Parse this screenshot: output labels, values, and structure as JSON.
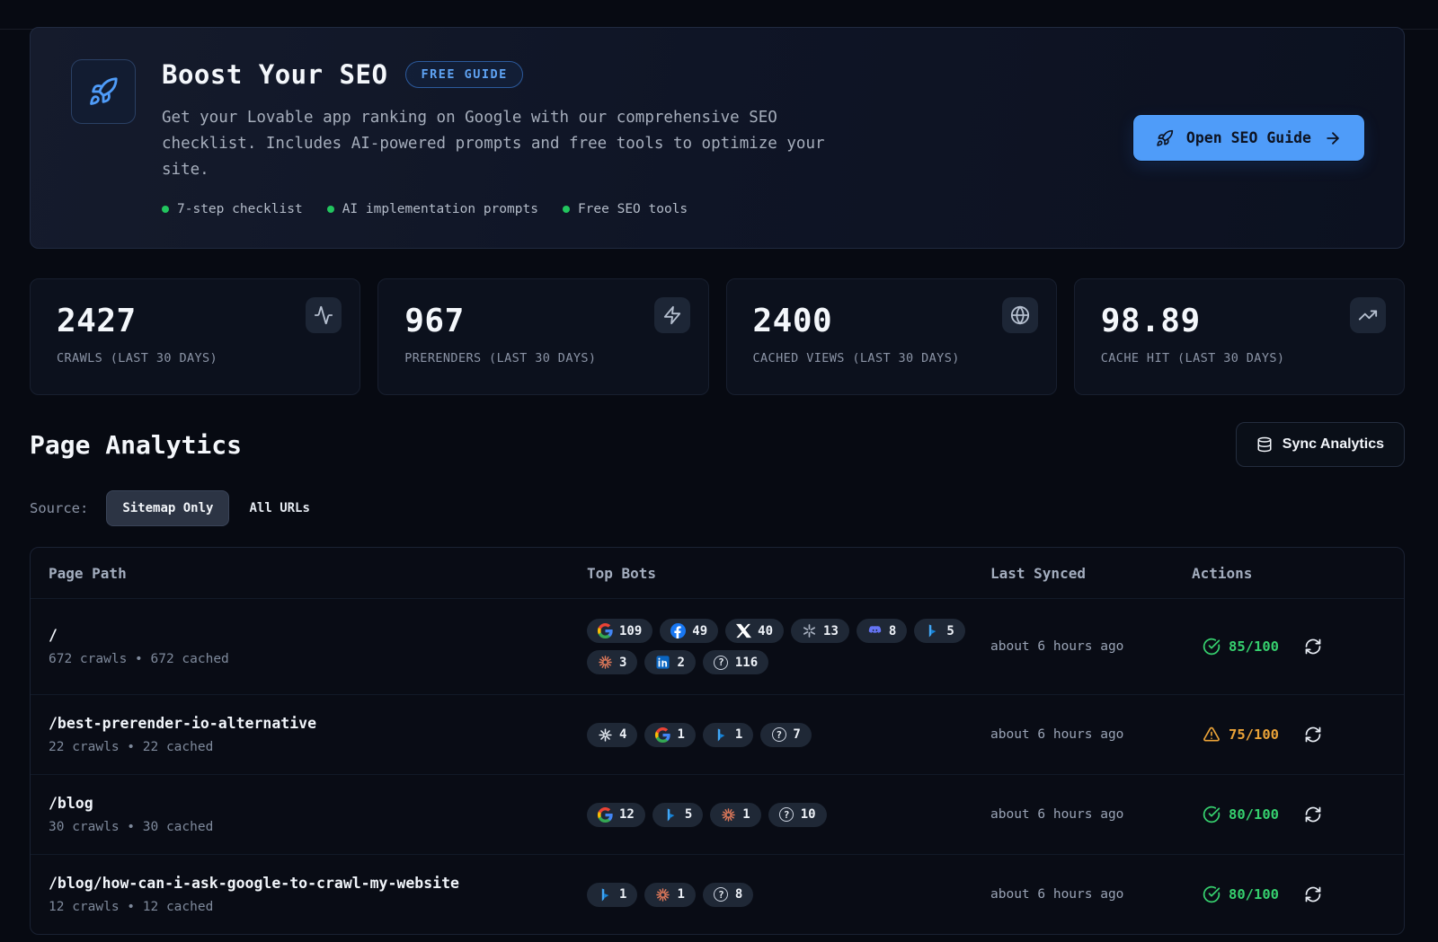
{
  "banner": {
    "title": "Boost Your SEO",
    "badge": "FREE GUIDE",
    "description": "Get your Lovable app ranking on Google with our comprehensive SEO checklist. Includes AI-powered prompts and free tools to optimize your site.",
    "features": [
      "7-step checklist",
      "AI implementation prompts",
      "Free SEO tools"
    ],
    "cta_label": "Open SEO Guide"
  },
  "stats": [
    {
      "value": "2427",
      "label": "CRAWLS (LAST 30 DAYS)",
      "icon": "activity"
    },
    {
      "value": "967",
      "label": "PRERENDERS (LAST 30 DAYS)",
      "icon": "zap"
    },
    {
      "value": "2400",
      "label": "CACHED VIEWS (LAST 30 DAYS)",
      "icon": "globe"
    },
    {
      "value": "98.89",
      "label": "CACHE HIT (LAST 30 DAYS)",
      "icon": "trend"
    }
  ],
  "analytics": {
    "title": "Page Analytics",
    "sync_button": "Sync Analytics",
    "source_label": "Source:",
    "source_options": [
      {
        "label": "Sitemap Only",
        "selected": true
      },
      {
        "label": "All URLs",
        "selected": false
      }
    ]
  },
  "table": {
    "headers": [
      "Page Path",
      "Top Bots",
      "Last Synced",
      "Actions"
    ],
    "rows": [
      {
        "path": "/",
        "meta": "672 crawls • 672 cached",
        "bots": [
          {
            "icon": "google",
            "count": "109"
          },
          {
            "icon": "facebook",
            "count": "49"
          },
          {
            "icon": "x",
            "count": "40"
          },
          {
            "icon": "openai",
            "count": "13"
          },
          {
            "icon": "discord",
            "count": "8"
          },
          {
            "icon": "bing",
            "count": "5"
          },
          {
            "icon": "anthropic",
            "count": "3"
          },
          {
            "icon": "linkedin",
            "count": "2"
          },
          {
            "icon": "question",
            "count": "116"
          }
        ],
        "last_synced": "about 6 hours ago",
        "score": "85/100",
        "score_status": "good"
      },
      {
        "path": "/best-prerender-io-alternative",
        "meta": "22 crawls • 22 cached",
        "bots": [
          {
            "icon": "star",
            "count": "4"
          },
          {
            "icon": "google",
            "count": "1"
          },
          {
            "icon": "bing",
            "count": "1"
          },
          {
            "icon": "question",
            "count": "7"
          }
        ],
        "last_synced": "about 6 hours ago",
        "score": "75/100",
        "score_status": "warn"
      },
      {
        "path": "/blog",
        "meta": "30 crawls • 30 cached",
        "bots": [
          {
            "icon": "google",
            "count": "12"
          },
          {
            "icon": "bing",
            "count": "5"
          },
          {
            "icon": "anthropic",
            "count": "1"
          },
          {
            "icon": "question",
            "count": "10"
          }
        ],
        "last_synced": "about 6 hours ago",
        "score": "80/100",
        "score_status": "good"
      },
      {
        "path": "/blog/how-can-i-ask-google-to-crawl-my-website",
        "meta": "12 crawls • 12 cached",
        "bots": [
          {
            "icon": "bing",
            "count": "1"
          },
          {
            "icon": "anthropic",
            "count": "1"
          },
          {
            "icon": "question",
            "count": "8"
          }
        ],
        "last_synced": "about 6 hours ago",
        "score": "80/100",
        "score_status": "good"
      }
    ]
  },
  "colors": {
    "accent_blue": "#4f9cf9",
    "success_green": "#36d06e",
    "warning_orange": "#eba338",
    "feature_dot_green": "#22c55e"
  }
}
